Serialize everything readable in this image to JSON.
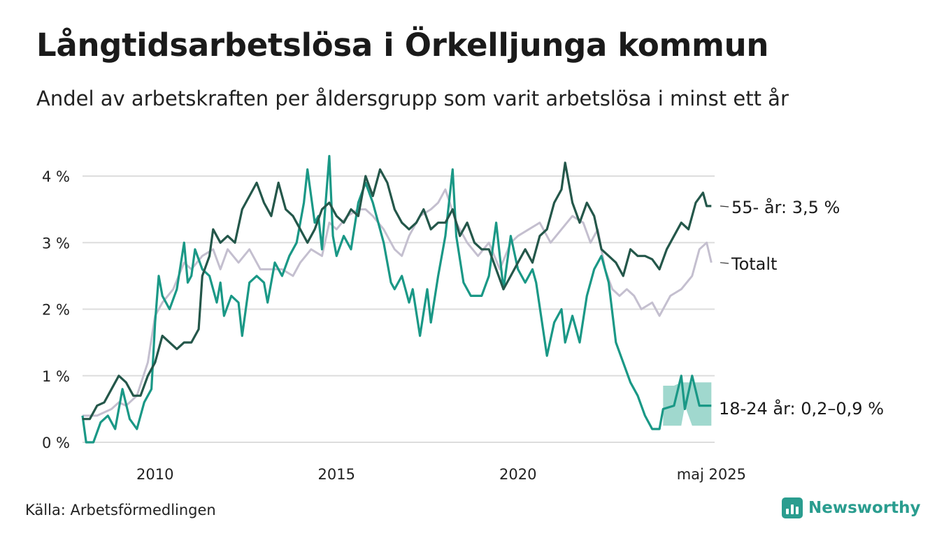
{
  "title": "Långtidsarbetslösa i Örkelljunga kommun",
  "subtitle": "Andel av arbetskraften per åldersgrupp som varit arbetslösa i minst ett år",
  "source": "Källa: Arbetsförmedlingen",
  "brand": "Newsworthy",
  "colors": {
    "series55": "#24574a",
    "total": "#c4bfcf",
    "youth": "#1a9886",
    "youth_band": "#8fd1c6",
    "grid": "#dddddd"
  },
  "chart_data": {
    "type": "line",
    "y_ticks": [
      {
        "value": 0,
        "label": "0 %"
      },
      {
        "value": 1,
        "label": "1 %"
      },
      {
        "value": 2,
        "label": "2 %"
      },
      {
        "value": 3,
        "label": "3 %"
      },
      {
        "value": 4,
        "label": "4 %"
      }
    ],
    "x_ticks": [
      {
        "value": 2010,
        "label": "2010"
      },
      {
        "value": 2015,
        "label": "2015"
      },
      {
        "value": 2020,
        "label": "2020"
      },
      {
        "value": 2025.33,
        "label": "maj 2025"
      }
    ],
    "xlim": [
      2008.0,
      2025.42
    ],
    "ylim": [
      0,
      4.5
    ],
    "grid": true,
    "end_labels": {
      "series55": "55- år: 3,5 %",
      "total": "Totalt",
      "youth": "18-24 år: 0,2–0,9 %"
    },
    "series": [
      {
        "key": "total",
        "points": [
          [
            2008.0,
            0.4
          ],
          [
            2008.4,
            0.4
          ],
          [
            2008.8,
            0.5
          ],
          [
            2009.0,
            0.6
          ],
          [
            2009.2,
            0.55
          ],
          [
            2009.5,
            0.7
          ],
          [
            2009.8,
            1.2
          ],
          [
            2010.0,
            1.9
          ],
          [
            2010.2,
            2.1
          ],
          [
            2010.5,
            2.3
          ],
          [
            2010.8,
            2.7
          ],
          [
            2011.0,
            2.6
          ],
          [
            2011.3,
            2.8
          ],
          [
            2011.6,
            2.9
          ],
          [
            2011.8,
            2.6
          ],
          [
            2012.0,
            2.9
          ],
          [
            2012.3,
            2.7
          ],
          [
            2012.6,
            2.9
          ],
          [
            2012.9,
            2.6
          ],
          [
            2013.2,
            2.6
          ],
          [
            2013.5,
            2.6
          ],
          [
            2013.8,
            2.5
          ],
          [
            2014.0,
            2.7
          ],
          [
            2014.3,
            2.9
          ],
          [
            2014.6,
            2.8
          ],
          [
            2014.8,
            3.3
          ],
          [
            2015.0,
            3.2
          ],
          [
            2015.3,
            3.4
          ],
          [
            2015.6,
            3.5
          ],
          [
            2015.8,
            3.5
          ],
          [
            2016.0,
            3.4
          ],
          [
            2016.3,
            3.2
          ],
          [
            2016.6,
            2.9
          ],
          [
            2016.8,
            2.8
          ],
          [
            2017.0,
            3.1
          ],
          [
            2017.3,
            3.4
          ],
          [
            2017.6,
            3.5
          ],
          [
            2017.8,
            3.6
          ],
          [
            2018.0,
            3.8
          ],
          [
            2018.3,
            3.3
          ],
          [
            2018.6,
            3.0
          ],
          [
            2018.9,
            2.8
          ],
          [
            2019.2,
            3.0
          ],
          [
            2019.5,
            2.6
          ],
          [
            2019.8,
            3.0
          ],
          [
            2020.0,
            3.1
          ],
          [
            2020.3,
            3.2
          ],
          [
            2020.6,
            3.3
          ],
          [
            2020.9,
            3.0
          ],
          [
            2021.2,
            3.2
          ],
          [
            2021.5,
            3.4
          ],
          [
            2021.8,
            3.3
          ],
          [
            2022.0,
            3.0
          ],
          [
            2022.2,
            3.2
          ],
          [
            2022.4,
            2.6
          ],
          [
            2022.6,
            2.3
          ],
          [
            2022.8,
            2.2
          ],
          [
            2023.0,
            2.3
          ],
          [
            2023.2,
            2.2
          ],
          [
            2023.4,
            2.0
          ],
          [
            2023.7,
            2.1
          ],
          [
            2023.9,
            1.9
          ],
          [
            2024.2,
            2.2
          ],
          [
            2024.5,
            2.3
          ],
          [
            2024.8,
            2.5
          ],
          [
            2025.0,
            2.9
          ],
          [
            2025.2,
            3.0
          ],
          [
            2025.33,
            2.7
          ]
        ]
      },
      {
        "key": "youth",
        "points": [
          [
            2008.0,
            0.4
          ],
          [
            2008.1,
            0.0
          ],
          [
            2008.3,
            0.0
          ],
          [
            2008.5,
            0.3
          ],
          [
            2008.7,
            0.4
          ],
          [
            2008.9,
            0.2
          ],
          [
            2009.1,
            0.8
          ],
          [
            2009.3,
            0.35
          ],
          [
            2009.5,
            0.2
          ],
          [
            2009.7,
            0.6
          ],
          [
            2009.9,
            0.8
          ],
          [
            2010.0,
            1.8
          ],
          [
            2010.1,
            2.5
          ],
          [
            2010.2,
            2.2
          ],
          [
            2010.4,
            2.0
          ],
          [
            2010.6,
            2.3
          ],
          [
            2010.8,
            3.0
          ],
          [
            2010.9,
            2.4
          ],
          [
            2011.0,
            2.5
          ],
          [
            2011.1,
            2.9
          ],
          [
            2011.3,
            2.6
          ],
          [
            2011.5,
            2.5
          ],
          [
            2011.7,
            2.1
          ],
          [
            2011.8,
            2.4
          ],
          [
            2011.9,
            1.9
          ],
          [
            2012.1,
            2.2
          ],
          [
            2012.3,
            2.1
          ],
          [
            2012.4,
            1.6
          ],
          [
            2012.6,
            2.4
          ],
          [
            2012.8,
            2.5
          ],
          [
            2013.0,
            2.4
          ],
          [
            2013.1,
            2.1
          ],
          [
            2013.3,
            2.7
          ],
          [
            2013.5,
            2.5
          ],
          [
            2013.7,
            2.8
          ],
          [
            2013.9,
            3.0
          ],
          [
            2014.0,
            3.3
          ],
          [
            2014.1,
            3.6
          ],
          [
            2014.2,
            4.1
          ],
          [
            2014.4,
            3.3
          ],
          [
            2014.5,
            3.4
          ],
          [
            2014.6,
            2.9
          ],
          [
            2014.7,
            3.6
          ],
          [
            2014.8,
            4.3
          ],
          [
            2014.9,
            3.1
          ],
          [
            2015.0,
            2.8
          ],
          [
            2015.2,
            3.1
          ],
          [
            2015.4,
            2.9
          ],
          [
            2015.6,
            3.6
          ],
          [
            2015.8,
            3.9
          ],
          [
            2016.0,
            3.6
          ],
          [
            2016.3,
            3.0
          ],
          [
            2016.5,
            2.4
          ],
          [
            2016.6,
            2.3
          ],
          [
            2016.8,
            2.5
          ],
          [
            2017.0,
            2.1
          ],
          [
            2017.1,
            2.3
          ],
          [
            2017.3,
            1.6
          ],
          [
            2017.5,
            2.3
          ],
          [
            2017.6,
            1.8
          ],
          [
            2017.8,
            2.5
          ],
          [
            2018.0,
            3.1
          ],
          [
            2018.2,
            4.1
          ],
          [
            2018.3,
            3.1
          ],
          [
            2018.5,
            2.4
          ],
          [
            2018.7,
            2.2
          ],
          [
            2019.0,
            2.2
          ],
          [
            2019.2,
            2.5
          ],
          [
            2019.4,
            3.3
          ],
          [
            2019.6,
            2.3
          ],
          [
            2019.8,
            3.1
          ],
          [
            2020.0,
            2.6
          ],
          [
            2020.2,
            2.4
          ],
          [
            2020.4,
            2.6
          ],
          [
            2020.5,
            2.4
          ],
          [
            2020.8,
            1.3
          ],
          [
            2021.0,
            1.8
          ],
          [
            2021.2,
            2.0
          ],
          [
            2021.3,
            1.5
          ],
          [
            2021.5,
            1.9
          ],
          [
            2021.7,
            1.5
          ],
          [
            2021.9,
            2.2
          ],
          [
            2022.1,
            2.6
          ],
          [
            2022.3,
            2.8
          ],
          [
            2022.5,
            2.4
          ],
          [
            2022.7,
            1.5
          ],
          [
            2022.9,
            1.2
          ],
          [
            2023.1,
            0.9
          ],
          [
            2023.3,
            0.7
          ],
          [
            2023.5,
            0.4
          ],
          [
            2023.7,
            0.2
          ],
          [
            2023.9,
            0.2
          ],
          [
            2024.0,
            0.5
          ],
          [
            2024.3,
            0.55
          ],
          [
            2024.5,
            1.0
          ],
          [
            2024.6,
            0.5
          ],
          [
            2024.8,
            1.0
          ],
          [
            2025.0,
            0.55
          ],
          [
            2025.33,
            0.55
          ]
        ],
        "band": [
          [
            2024.0,
            0.25,
            0.85
          ],
          [
            2024.3,
            0.25,
            0.85
          ],
          [
            2024.5,
            0.25,
            0.9
          ],
          [
            2024.6,
            0.55,
            0.9
          ],
          [
            2024.8,
            0.25,
            0.9
          ],
          [
            2025.0,
            0.25,
            0.9
          ],
          [
            2025.33,
            0.25,
            0.9
          ]
        ]
      },
      {
        "key": "series55",
        "points": [
          [
            2008.0,
            0.35
          ],
          [
            2008.2,
            0.35
          ],
          [
            2008.4,
            0.55
          ],
          [
            2008.6,
            0.6
          ],
          [
            2008.8,
            0.8
          ],
          [
            2009.0,
            1.0
          ],
          [
            2009.2,
            0.9
          ],
          [
            2009.4,
            0.7
          ],
          [
            2009.6,
            0.7
          ],
          [
            2009.8,
            1.0
          ],
          [
            2010.0,
            1.2
          ],
          [
            2010.2,
            1.6
          ],
          [
            2010.4,
            1.5
          ],
          [
            2010.6,
            1.4
          ],
          [
            2010.8,
            1.5
          ],
          [
            2011.0,
            1.5
          ],
          [
            2011.2,
            1.7
          ],
          [
            2011.3,
            2.5
          ],
          [
            2011.5,
            2.8
          ],
          [
            2011.6,
            3.2
          ],
          [
            2011.8,
            3.0
          ],
          [
            2012.0,
            3.1
          ],
          [
            2012.2,
            3.0
          ],
          [
            2012.4,
            3.5
          ],
          [
            2012.6,
            3.7
          ],
          [
            2012.8,
            3.9
          ],
          [
            2013.0,
            3.6
          ],
          [
            2013.2,
            3.4
          ],
          [
            2013.4,
            3.9
          ],
          [
            2013.6,
            3.5
          ],
          [
            2013.8,
            3.4
          ],
          [
            2014.0,
            3.2
          ],
          [
            2014.2,
            3.0
          ],
          [
            2014.4,
            3.2
          ],
          [
            2014.6,
            3.5
          ],
          [
            2014.8,
            3.6
          ],
          [
            2015.0,
            3.4
          ],
          [
            2015.2,
            3.3
          ],
          [
            2015.4,
            3.5
          ],
          [
            2015.6,
            3.4
          ],
          [
            2015.8,
            4.0
          ],
          [
            2016.0,
            3.7
          ],
          [
            2016.2,
            4.1
          ],
          [
            2016.4,
            3.9
          ],
          [
            2016.6,
            3.5
          ],
          [
            2016.8,
            3.3
          ],
          [
            2017.0,
            3.2
          ],
          [
            2017.2,
            3.3
          ],
          [
            2017.4,
            3.5
          ],
          [
            2017.6,
            3.2
          ],
          [
            2017.8,
            3.3
          ],
          [
            2018.0,
            3.3
          ],
          [
            2018.2,
            3.5
          ],
          [
            2018.4,
            3.1
          ],
          [
            2018.6,
            3.3
          ],
          [
            2018.8,
            3.0
          ],
          [
            2019.0,
            2.9
          ],
          [
            2019.2,
            2.9
          ],
          [
            2019.4,
            2.6
          ],
          [
            2019.6,
            2.3
          ],
          [
            2019.8,
            2.5
          ],
          [
            2020.0,
            2.7
          ],
          [
            2020.2,
            2.9
          ],
          [
            2020.4,
            2.7
          ],
          [
            2020.6,
            3.1
          ],
          [
            2020.8,
            3.2
          ],
          [
            2021.0,
            3.6
          ],
          [
            2021.2,
            3.8
          ],
          [
            2021.3,
            4.2
          ],
          [
            2021.5,
            3.6
          ],
          [
            2021.7,
            3.3
          ],
          [
            2021.9,
            3.6
          ],
          [
            2022.1,
            3.4
          ],
          [
            2022.3,
            2.9
          ],
          [
            2022.5,
            2.8
          ],
          [
            2022.7,
            2.7
          ],
          [
            2022.9,
            2.5
          ],
          [
            2023.1,
            2.9
          ],
          [
            2023.3,
            2.8
          ],
          [
            2023.5,
            2.8
          ],
          [
            2023.7,
            2.75
          ],
          [
            2023.9,
            2.6
          ],
          [
            2024.1,
            2.9
          ],
          [
            2024.3,
            3.1
          ],
          [
            2024.5,
            3.3
          ],
          [
            2024.7,
            3.2
          ],
          [
            2024.9,
            3.6
          ],
          [
            2025.1,
            3.75
          ],
          [
            2025.2,
            3.55
          ],
          [
            2025.33,
            3.55
          ]
        ]
      }
    ]
  }
}
